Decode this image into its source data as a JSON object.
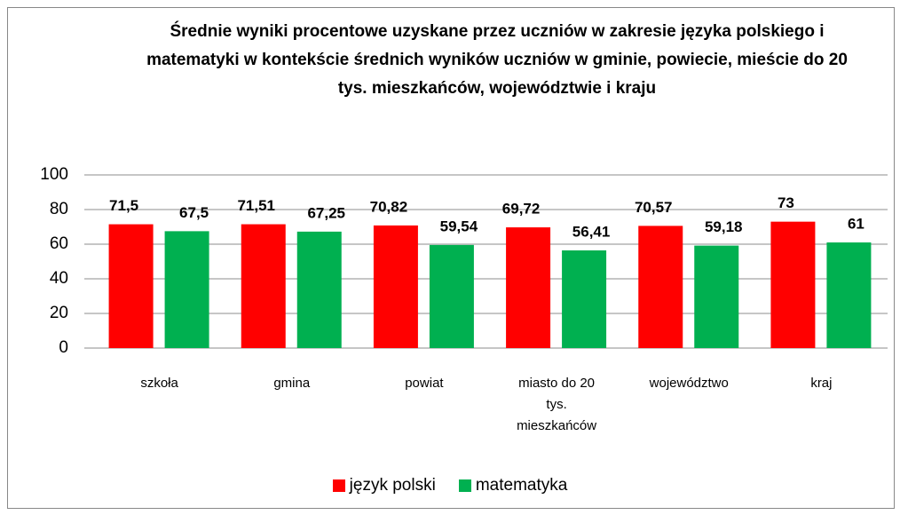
{
  "chart_data": {
    "type": "bar",
    "title": "Średnie wyniki procentowe uzyskane przez uczniów w zakresie języka polskiego i matematyki w kontekście średnich wyników uczniów w gminie, powiecie, mieście do 20 tys. mieszkańców, województwie i kraju",
    "categories": [
      "szkoła",
      "gmina",
      "powiat",
      "miasto do 20 tys. mieszkańców",
      "województwo",
      "kraj"
    ],
    "series": [
      {
        "name": "język polski",
        "color": "#ff0000",
        "values": [
          71.5,
          71.51,
          70.82,
          69.72,
          70.57,
          73
        ],
        "value_labels": [
          "71,5",
          "71,51",
          "70,82",
          "69,72",
          "70,57",
          "73"
        ]
      },
      {
        "name": "matematyka",
        "color": "#00b050",
        "values": [
          67.5,
          67.25,
          59.54,
          56.41,
          59.18,
          61
        ],
        "value_labels": [
          "67,5",
          "67,25",
          "59,54",
          "56,41",
          "59,18",
          "61"
        ]
      }
    ],
    "ylim": [
      0,
      100
    ],
    "yticks": [
      0,
      20,
      40,
      60,
      80,
      100
    ],
    "grid": true,
    "legend": "bottom"
  }
}
